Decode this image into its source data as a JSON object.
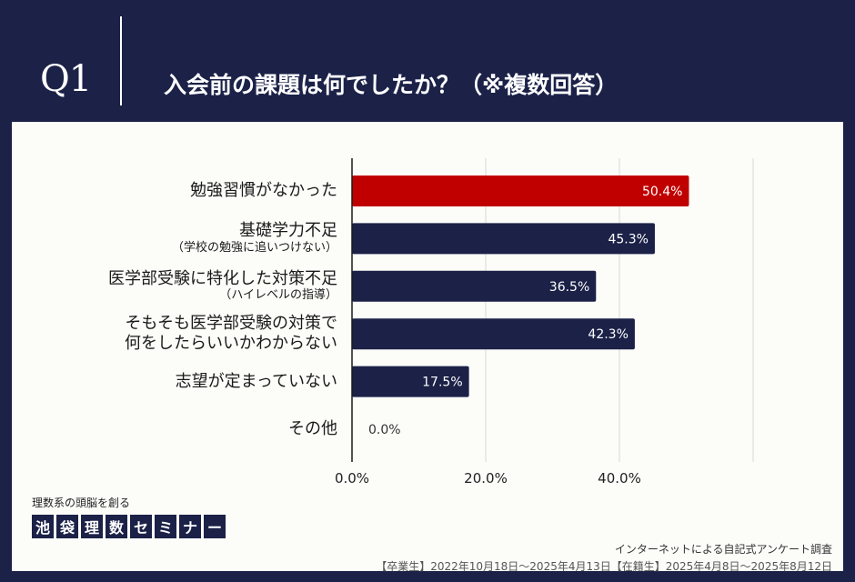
{
  "header": {
    "q_label": "Q1",
    "question": "入会前の課題は何でしたか？（※複数回答）"
  },
  "chart_data": {
    "type": "bar",
    "orientation": "horizontal",
    "categories": [
      {
        "main": "勉強習慣がなかった",
        "sub": ""
      },
      {
        "main": "基礎学力不足",
        "sub": "（学校の勉強に追いつけない）"
      },
      {
        "main": "医学部受験に特化した対策不足",
        "sub": "（ハイレベルの指導）"
      },
      {
        "main": "そもそも医学部受験の対策で",
        "sub": "何をしたらいいかわからない"
      },
      {
        "main": "志望が定まっていない",
        "sub": ""
      },
      {
        "main": "その他",
        "sub": ""
      }
    ],
    "values": [
      50.4,
      45.3,
      36.5,
      42.3,
      17.5,
      0.0
    ],
    "value_labels": [
      "50.4%",
      "45.3%",
      "36.5%",
      "42.3%",
      "17.5%",
      "0.0%"
    ],
    "xlim": [
      0,
      60
    ],
    "xticks": [
      0,
      20,
      40
    ],
    "xtick_labels": [
      "0.0%",
      "20.0%",
      "40.0%"
    ],
    "gridlines": [
      20,
      40,
      60
    ],
    "colors": {
      "highlight": "#c00000",
      "default": "#1b2147",
      "grid": "#d9d9d9",
      "axis": "#1a1a1a"
    }
  },
  "logo": {
    "tagline": "理数系の頭脳を創る",
    "chars": [
      "池",
      "袋",
      "理",
      "数",
      "セ",
      "ミ",
      "ナ",
      "ー"
    ]
  },
  "source": {
    "line1": "インターネットによる自記式アンケート調査",
    "line2": "【卒業生】2022年10月18日～2025年4月13日【在籍生】2025年4月8日～2025年8月12日"
  }
}
